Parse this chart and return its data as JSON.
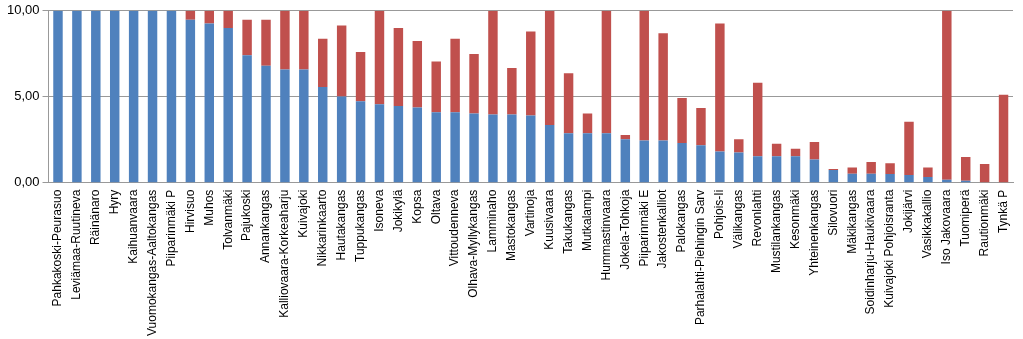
{
  "chart_data": {
    "type": "bar",
    "stacked": true,
    "categories": [
      "Pahkakoski-Peurasuo",
      "Leviämaa-Ruutineva",
      "Räinänaro",
      "Hyry",
      "Kaihuanvaara",
      "Vuomokangas-Aaltokangas",
      "Piiparinmäki P",
      "Hirvisuo",
      "Muhos",
      "Tolvanmäki",
      "Pajukoski",
      "Annankangas",
      "Kalliovaara-Korkeaharju",
      "Kuivajoki",
      "Nikkarinkaarto",
      "Hautakangas",
      "Tuppukangas",
      "Isoneva",
      "Jokikylä",
      "Kopsa",
      "Oltava",
      "Vittoudenneva",
      "Olhava-Myllykangas",
      "Lamminaho",
      "Mastokangas",
      "Vartinoja",
      "Kuusivaara",
      "Takukangas",
      "Mutkalampi",
      "Hummastinvaara",
      "Jokela-Tohkoja",
      "Piiparinmäki E",
      "Jakostenkalliot",
      "Palokangas",
      "Parhalahti-Piehingin Sarv",
      "Pohjois-Ii",
      "Välikangas",
      "Revonlahti",
      "Mustilankangas",
      "Kesonmäki",
      "Yhteinenkangas",
      "Silovuori",
      "Mäkikangas",
      "Soidinharju-Haukivaara",
      "Kuivajoki Pohjoisranta",
      "Jokijärvi",
      "Vasikkakallio",
      "Iso Jakovaara",
      "Tuomiperä",
      "Rautionmäki",
      "Tynkä P"
    ],
    "series": [
      {
        "color": "#4f81bd",
        "values": [
          10,
          10,
          10,
          10,
          10,
          10,
          10,
          9.48,
          9.26,
          9.0,
          7.41,
          6.8,
          6.58,
          6.58,
          5.56,
          5.01,
          4.74,
          4.57,
          4.46,
          4.38,
          4.1,
          4.1,
          4.02,
          3.97,
          3.97,
          3.91,
          3.36,
          2.87,
          2.87,
          2.87,
          2.53,
          2.45,
          2.45,
          2.31,
          2.18,
          1.82,
          1.76,
          1.54,
          1.54,
          1.54,
          1.35,
          0.74,
          0.52,
          0.52,
          0.5,
          0.44,
          0.33,
          0.17,
          0.11,
          0,
          0
        ]
      },
      {
        "color": "#c0504d",
        "values": [
          0,
          0,
          0,
          0,
          0,
          0,
          0,
          0.52,
          0.74,
          1.0,
          2.07,
          2.68,
          3.42,
          3.42,
          2.82,
          4.14,
          2.86,
          5.43,
          4.54,
          3.86,
          2.95,
          4.28,
          3.47,
          6.03,
          2.7,
          4.88,
          6.64,
          3.49,
          1.15,
          7.13,
          0.25,
          7.55,
          6.25,
          2.62,
          2.17,
          7.44,
          0.77,
          4.27,
          0.72,
          0.44,
          1.02,
          0.06,
          0.36,
          0.69,
          0.63,
          3.11,
          0.55,
          9.83,
          1.38,
          1.08,
          5.12
        ]
      }
    ],
    "ylim": [
      0,
      10
    ],
    "yticks": [
      {
        "value": 0,
        "label": "0,00"
      },
      {
        "value": 5,
        "label": "5,00"
      },
      {
        "value": 10,
        "label": "10,00"
      }
    ],
    "grid": "y"
  }
}
